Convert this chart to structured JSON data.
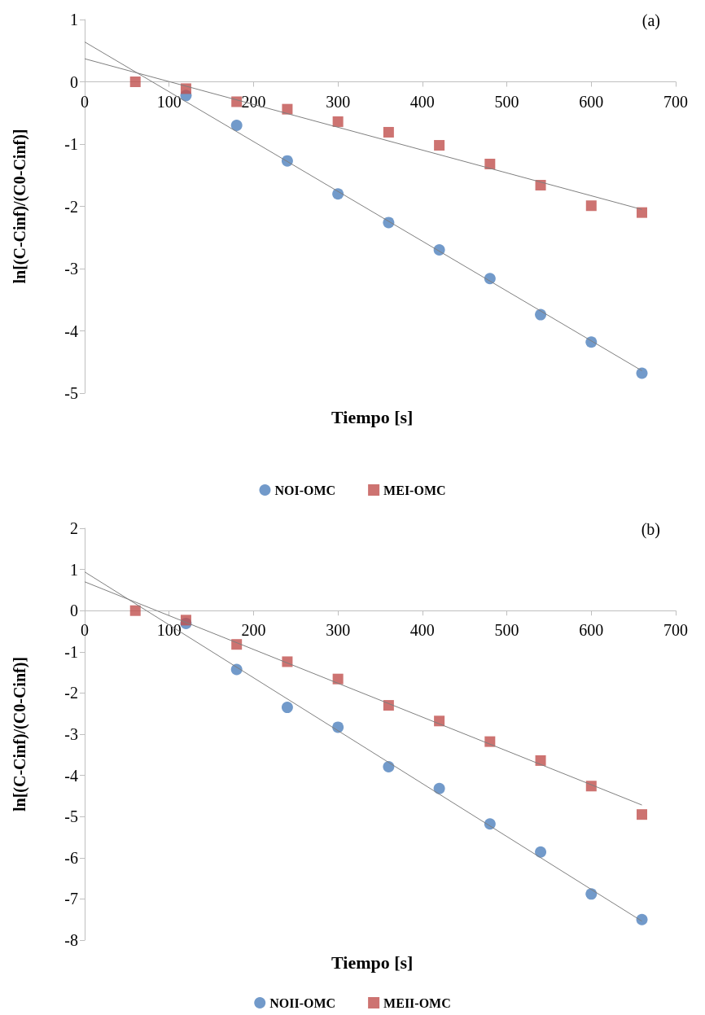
{
  "chart_data": [
    {
      "type": "scatter",
      "title": "(a)",
      "xlabel": "Tiempo [s]",
      "ylabel": "ln[(C-Cinf)/(C0-Cinf)]",
      "xlim": [
        0,
        700
      ],
      "xticks": [
        0,
        100,
        200,
        300,
        400,
        500,
        600,
        700
      ],
      "ylim": [
        -5,
        1
      ],
      "yticks": [
        -5,
        -4,
        -3,
        -2,
        -1,
        0,
        1
      ],
      "grid": false,
      "legend": "bottom",
      "series": [
        {
          "name": "NOI-OMC",
          "color": "#4f81bd",
          "marker": "circle",
          "x": [
            120,
            180,
            240,
            300,
            360,
            420,
            480,
            540,
            600,
            660
          ],
          "values": [
            -0.22,
            -0.7,
            -1.27,
            -1.8,
            -2.26,
            -2.7,
            -3.16,
            -3.74,
            -4.18,
            -4.68
          ]
        },
        {
          "name": "MEI-OMC",
          "color": "#c0504d",
          "marker": "square",
          "x": [
            60,
            120,
            180,
            240,
            300,
            360,
            420,
            480,
            540,
            600,
            660
          ],
          "values": [
            0,
            -0.11,
            -0.32,
            -0.44,
            -0.64,
            -0.81,
            -1.02,
            -1.32,
            -1.66,
            -1.99,
            -2.1
          ]
        },
        {
          "type": "line",
          "color": "#7f7f7f",
          "marker": "none",
          "x": [
            0,
            660
          ],
          "values": [
            0.64,
            -4.64
          ]
        },
        {
          "type": "line",
          "color": "#7f7f7f",
          "marker": "none",
          "x": [
            0,
            660
          ],
          "values": [
            0.37,
            -2.05
          ]
        }
      ]
    },
    {
      "type": "scatter",
      "title": "(b)",
      "xlabel": "Tiempo [s]",
      "ylabel": "ln[(C-Cinf)/(C0-Cinf)]",
      "xlim": [
        0,
        700
      ],
      "xticks": [
        0,
        100,
        200,
        300,
        400,
        500,
        600,
        700
      ],
      "ylim": [
        -8,
        2
      ],
      "yticks": [
        -8,
        -7,
        -6,
        -5,
        -4,
        -3,
        -2,
        -1,
        0,
        1,
        2
      ],
      "grid": false,
      "legend": "bottom",
      "series": [
        {
          "name": "NOII-OMC",
          "color": "#4f81bd",
          "marker": "circle",
          "x": [
            120,
            180,
            240,
            300,
            360,
            420,
            480,
            540,
            600,
            660
          ],
          "values": [
            -0.31,
            -1.43,
            -2.35,
            -2.83,
            -3.79,
            -4.32,
            -5.18,
            -5.86,
            -6.88,
            -7.5
          ]
        },
        {
          "name": "MEII-OMC",
          "color": "#c0504d",
          "marker": "square",
          "x": [
            60,
            120,
            180,
            240,
            300,
            360,
            420,
            480,
            540,
            600,
            660
          ],
          "values": [
            0,
            -0.23,
            -0.82,
            -1.24,
            -1.66,
            -2.3,
            -2.68,
            -3.18,
            -3.64,
            -4.26,
            -4.95
          ]
        },
        {
          "type": "line",
          "color": "#7f7f7f",
          "marker": "none",
          "x": [
            0,
            660
          ],
          "values": [
            0.94,
            -7.54
          ]
        },
        {
          "type": "line",
          "color": "#7f7f7f",
          "marker": "none",
          "x": [
            0,
            660
          ],
          "values": [
            0.7,
            -4.72
          ]
        }
      ]
    }
  ]
}
